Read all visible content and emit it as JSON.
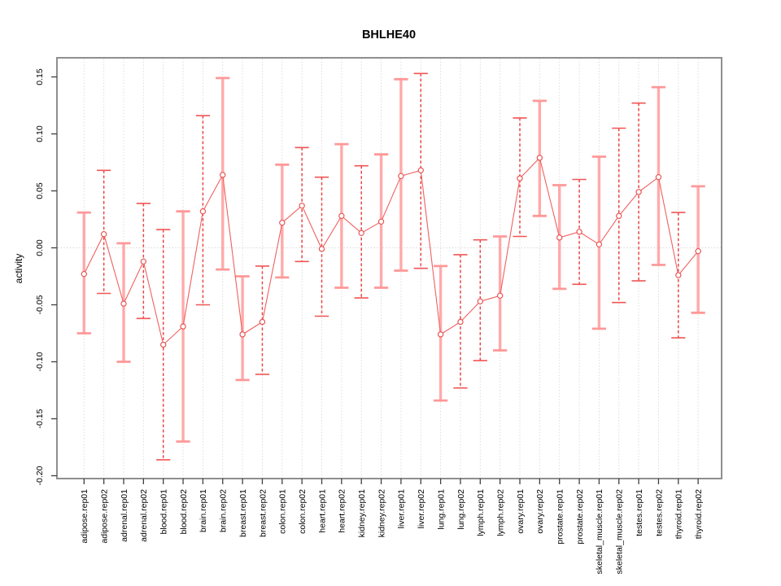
{
  "title": "BHLHE40",
  "chart_data": {
    "type": "line",
    "title": "BHLHE40",
    "xlabel": "",
    "ylabel": "activity",
    "ylim": [
      -0.205,
      0.167
    ],
    "grid": "vertical dotted gridlines at each category plus dotted horizontal line at y=0; legend: none",
    "y_ticks": {
      "values": [
        0.15,
        0.1,
        0.05,
        0.0,
        -0.05,
        -0.1,
        -0.15,
        -0.2
      ],
      "labels": [
        "0.15",
        "0.10",
        "0.05",
        "0.00",
        "-0.05",
        "-0.10",
        "-0.15",
        "-0.20"
      ]
    },
    "categories": [
      "adipose.rep01",
      "adipose.rep02",
      "adrenal.rep01",
      "adrenal.rep02",
      "blood.rep01",
      "blood.rep02",
      "brain.rep01",
      "brain.rep02",
      "breast.rep01",
      "breast.rep02",
      "colon.rep01",
      "colon.rep02",
      "heart.rep01",
      "heart.rep02",
      "kidney.rep01",
      "kidney.rep02",
      "liver.rep01",
      "liver.rep02",
      "lung.rep01",
      "lung.rep02",
      "lymph.rep01",
      "lymph.rep02",
      "ovary.rep01",
      "ovary.rep02",
      "prostate.rep01",
      "prostate.rep02",
      "skeletal_muscle.rep01",
      "skeletal_muscle.rep02",
      "testes.rep01",
      "testes.rep02",
      "thyroid.rep01",
      "thyroid.rep02"
    ],
    "series": [
      {
        "name": "activity",
        "marker": "open-circle",
        "values": [
          -0.023,
          0.012,
          -0.049,
          -0.012,
          -0.085,
          -0.069,
          0.032,
          0.064,
          -0.076,
          -0.065,
          0.022,
          0.037,
          -0.001,
          0.028,
          0.013,
          0.023,
          0.063,
          0.068,
          -0.076,
          -0.065,
          -0.047,
          -0.042,
          0.061,
          0.079,
          0.009,
          0.014,
          0.003,
          0.028,
          0.049,
          0.062,
          -0.024,
          -0.003
        ],
        "ci_high": [
          0.031,
          0.068,
          0.004,
          0.039,
          0.016,
          0.032,
          0.116,
          0.149,
          -0.025,
          -0.016,
          0.073,
          0.088,
          0.062,
          0.091,
          0.072,
          0.082,
          0.148,
          0.153,
          -0.016,
          -0.006,
          0.007,
          0.01,
          0.114,
          0.129,
          0.055,
          0.06,
          0.08,
          0.105,
          0.127,
          0.141,
          0.031,
          0.054
        ],
        "ci_low": [
          -0.075,
          -0.04,
          -0.1,
          -0.062,
          -0.186,
          -0.17,
          -0.05,
          -0.019,
          -0.116,
          -0.111,
          -0.026,
          -0.012,
          -0.06,
          -0.035,
          -0.044,
          -0.035,
          -0.02,
          -0.018,
          -0.134,
          -0.123,
          -0.099,
          -0.09,
          0.01,
          0.028,
          -0.036,
          -0.032,
          -0.071,
          -0.048,
          -0.029,
          -0.015,
          -0.079,
          -0.057
        ],
        "whisker_styles": [
          "solid",
          "dashed",
          "solid",
          "dashed",
          "dashed",
          "solid",
          "dashed",
          "solid",
          "solid",
          "dashed",
          "solid",
          "dashed",
          "dashed",
          "solid",
          "dashed",
          "solid",
          "solid",
          "dashed",
          "solid",
          "dashed",
          "dashed",
          "solid",
          "dashed",
          "solid",
          "solid",
          "dashed",
          "solid",
          "dashed",
          "dashed",
          "solid",
          "dashed",
          "solid"
        ]
      }
    ],
    "colors": {
      "point": "#e85050",
      "line": "#f06060",
      "whisker_solid": "#ffaaaa",
      "whisker_dashed": "#ee4444",
      "cap_solid": "#ff9898",
      "cap_dashed": "#f25555",
      "grid": "#d8d8d8",
      "box": "#8f8f8f",
      "tick": "#404040",
      "text": "#000000"
    }
  }
}
